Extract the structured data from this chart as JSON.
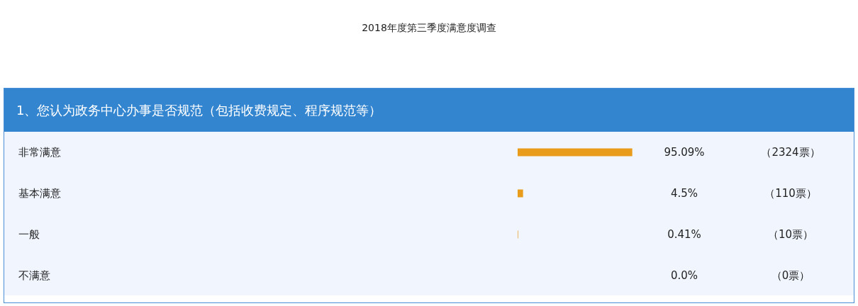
{
  "chart_data": {
    "type": "bar",
    "orientation": "horizontal",
    "title": "2018年度第三季度满意度调查",
    "subtitle": "1、您认为政务中心办事是否规范（包括收费规定、程序规范等）",
    "categories": [
      "非常满意",
      "基本满意",
      "一般",
      "不满意"
    ],
    "values": [
      95.09,
      4.5,
      0.41,
      0.0
    ],
    "value_labels": [
      "95.09%",
      "4.5%",
      "0.41%",
      "0.0%"
    ],
    "color": "#e99c1b",
    "tick_labels": "y",
    "annotations": [
      "（2324票）",
      "（110票）",
      "（10票）",
      "（0票）"
    ]
  }
}
